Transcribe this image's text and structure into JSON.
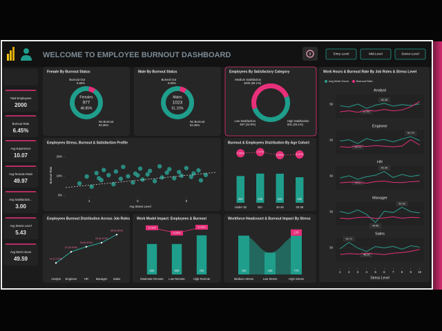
{
  "header": {
    "title": "WELCOME TO EMPLOYEE BURNOUT DASHBOARD",
    "buttons": [
      "Entry-Level",
      "Mid-Level",
      "Senior-Level"
    ]
  },
  "kpis": [
    {
      "label": "Total Employees",
      "value": "2000"
    },
    {
      "label": "Burnout Rate",
      "value": "6.45%"
    },
    {
      "label": "Avg Experience",
      "value": "10.07"
    },
    {
      "label": "Avg Remote Ratio",
      "value": "49.97"
    },
    {
      "label": "Avg Satisfaction...",
      "value": "3.00"
    },
    {
      "label": "Avg Stress Level",
      "value": "5.43"
    },
    {
      "label": "Avg Work Hours",
      "value": "49.59"
    }
  ],
  "chart_data": [
    {
      "type": "donut",
      "title": "Female By Burnout Status",
      "categories": [
        "Burnout Out",
        "No Burnout"
      ],
      "values": [
        6.65,
        93.35
      ],
      "value_labels": [
        "6.65%",
        "93.35%"
      ],
      "colors": [
        "#e8307a",
        "#1f9e8c"
      ],
      "center_text": [
        "Females",
        "977",
        "48.85%"
      ]
    },
    {
      "type": "donut",
      "title": "Male By Burnout Status",
      "categories": [
        "Burned Out",
        "No Burnout"
      ],
      "values": [
        6.65,
        93.35
      ],
      "value_labels": [
        "6.65%",
        "93.35%"
      ],
      "colors": [
        "#e8307a",
        "#1f9e8c"
      ],
      "center_text": [
        "Males",
        "1023",
        "51.15%"
      ]
    },
    {
      "type": "donut",
      "title": "Employees By Satisfactory Category",
      "categories": [
        "Medium Satisfaction",
        "High Satisfaction",
        "Low Satisfaction"
      ],
      "values": [
        1000,
        501,
        497
      ],
      "value_labels": [
        "1000 (50.1%)",
        "501 (25.1%)",
        "497 (24.9%)"
      ],
      "colors": [
        "#e8307a",
        "#1f9e8c",
        "#1f9e8c"
      ]
    },
    {
      "type": "scatter",
      "title": "Employees Stress, Burnout & Satisfaction Profile",
      "x_label": "Avg Stress Level",
      "y_label": "Burnout Rate",
      "color": "#2a9d8f",
      "x": [
        3.6,
        3.9,
        4.1,
        4.3,
        4.5,
        4.6,
        4.8,
        5.0,
        5.1,
        5.3,
        5.4,
        5.6,
        5.8,
        5.9,
        6.1,
        6.2,
        6.4,
        6.5,
        6.7,
        6.9,
        7.0,
        7.2,
        7.3,
        7.5,
        7.7,
        7.8,
        8.0,
        8.2,
        8.3,
        8.5,
        8.6,
        8.8,
        4.4,
        6.0
      ],
      "y": [
        6.2,
        9.8,
        4.5,
        11.6,
        7.9,
        13.2,
        10.5,
        5.8,
        12.4,
        8.6,
        14.8,
        9.9,
        6.7,
        11.3,
        13.9,
        8.2,
        10.9,
        12.7,
        7.4,
        15.1,
        9.3,
        11.8,
        13.6,
        8.9,
        12.1,
        10.2,
        14.2,
        9.6,
        11.4,
        13.0,
        7.8,
        10.6,
        8.9,
        10.4
      ],
      "xlim": [
        3,
        9.2
      ],
      "xticks": [
        4,
        6,
        8
      ],
      "ylim": [
        -1,
        22
      ],
      "yticks": [
        {
          "value": 0,
          "label": "0%"
        },
        {
          "value": 10,
          "label": "10%"
        },
        {
          "value": 20,
          "label": "20%"
        }
      ]
    },
    {
      "type": "combo",
      "title": "Burnout & Employees Distribution By Age Cohort",
      "categories": [
        "Under 30",
        "50+",
        "40-49",
        "30-39"
      ],
      "series": [
        {
          "color": "#1f9e8c",
          "values": [
            484,
            528,
            526,
            462
          ]
        },
        {
          "color": "#e8307a",
          "axis": "y2",
          "marker": "circle",
          "values": [
            7.08,
            7.77,
            5.99,
            6.41
          ],
          "value_labels": [
            "7.08%",
            "7.77%",
            "5.99%",
            "6.41%"
          ]
        }
      ],
      "ylim": [
        0,
        800
      ],
      "y2lim": [
        0,
        8
      ]
    },
    {
      "type": "line",
      "title": "Employees Burnout Distribution Across Job Roles",
      "categories": [
        "Analyst",
        "Engineer",
        "HR",
        "Manager",
        "Sales"
      ],
      "color": "#2a9d8f",
      "values": [
        10,
        21,
        26,
        30,
        38
      ],
      "value_labels": [
        "10 (1.97%)",
        "21 (5.40%)",
        "26 (6.40%)",
        "30 (6.41%)",
        "38 (8.35%)"
      ],
      "ylim": [
        0,
        45
      ]
    },
    {
      "type": "combo",
      "title": "Work Model Impact: Employees & Burnout",
      "categories": [
        "Moderate Remote",
        "Low Remote",
        "High Remote"
      ],
      "series": [
        {
          "color": "#1f9e8c",
          "values": [
            609,
            609,
            782
          ]
        },
        {
          "color": "#e8307a",
          "axis": "y2",
          "marker": "square",
          "values": [
            6.73,
            6.25,
            6.78
          ],
          "value_labels": [
            "6.73%",
            "6.25%",
            "6.78%"
          ]
        }
      ],
      "ylim": [
        0,
        800
      ],
      "y2lim": [
        6,
        7
      ]
    },
    {
      "type": "bar",
      "title": "Workforce Headcount & Burnout Impact By Stress",
      "categories": [
        "Medium Stress",
        "Low Stress",
        "High Stress"
      ],
      "series": [
        {
          "color": "#1f9e8c",
          "values": [
            782,
            439,
            779
          ]
        },
        {
          "color": "#e8307a",
          "values": [
            null,
            null,
            129
          ]
        }
      ],
      "ylim": [
        0,
        1000
      ]
    },
    {
      "type": "line",
      "title": "Work Hours & Burnout Rate By Job Roles & Stress Level",
      "legend": [
        "Avg Work Hours",
        "Burnout Rate"
      ],
      "colors": [
        "#2a9d8f",
        "#e8307a"
      ],
      "x": [
        1,
        2,
        3,
        4,
        5,
        6,
        7,
        8,
        9,
        10
      ],
      "xticks": [
        1,
        2,
        3,
        4,
        5,
        6,
        7,
        8,
        9,
        10
      ],
      "x_label": "Stress Level",
      "xlim": [
        0.5,
        10.5
      ],
      "ylim": [
        43,
        55
      ],
      "yticks": [
        50
      ],
      "y2lim": [
        0,
        20
      ],
      "panels": [
        {
          "title": "Analyst",
          "series": [
            {
              "values": [
                49.2,
                48.6,
                50.1,
                47.91,
                49.5,
                50.48,
                49.0,
                49.8,
                49.3,
                50.2
              ]
            },
            {
              "axis": "y2",
              "values": [
                5.2,
                6.1,
                4.8,
                6.5,
                5.9,
                7.2,
                6.0,
                6.8,
                9.5,
                14.0
              ]
            }
          ]
        },
        {
          "title": "Engineer",
          "series": [
            {
              "values": [
                49.5,
                50.2,
                48.24,
                50.8,
                49.6,
                50.3,
                49.1,
                50.6,
                51.79,
                49.8
              ]
            },
            {
              "axis": "y2",
              "values": [
                6.0,
                5.5,
                6.8,
                6.2,
                7.0,
                6.4,
                5.9,
                6.6,
                12.0,
                7.5
              ]
            }
          ]
        },
        {
          "title": "HR",
          "series": [
            {
              "values": [
                48.9,
                50.1,
                48.3,
                49.6,
                50.4,
                52.28,
                49.2,
                50.8,
                49.7,
                50.5
              ]
            },
            {
              "axis": "y2",
              "values": [
                5.8,
                6.4,
                6.1,
                5.5,
                6.9,
                7.3,
                6.2,
                6.0,
                6.8,
                7.1
              ]
            }
          ]
        },
        {
          "title": "Manager",
          "series": [
            {
              "values": [
                50.2,
                49.1,
                51.0,
                48.7,
                44.55,
                50.3,
                49.6,
                52.33,
                50.1,
                49.4
              ]
            },
            {
              "axis": "y2",
              "values": [
                6.3,
                5.7,
                6.8,
                7.1,
                6.0,
                6.5,
                7.4,
                6.2,
                6.9,
                6.6
              ]
            }
          ]
        },
        {
          "title": "Sales",
          "series": [
            {
              "values": [
                49.4,
                52.71,
                49.8,
                48.04,
                50.6,
                49.9,
                50.7,
                49.2,
                51.0,
                50.3
              ]
            },
            {
              "axis": "y2",
              "values": [
                5.9,
                6.6,
                6.2,
                7.0,
                6.4,
                5.8,
                6.9,
                7.5,
                8.5,
                10.2
              ]
            }
          ]
        }
      ]
    }
  ]
}
